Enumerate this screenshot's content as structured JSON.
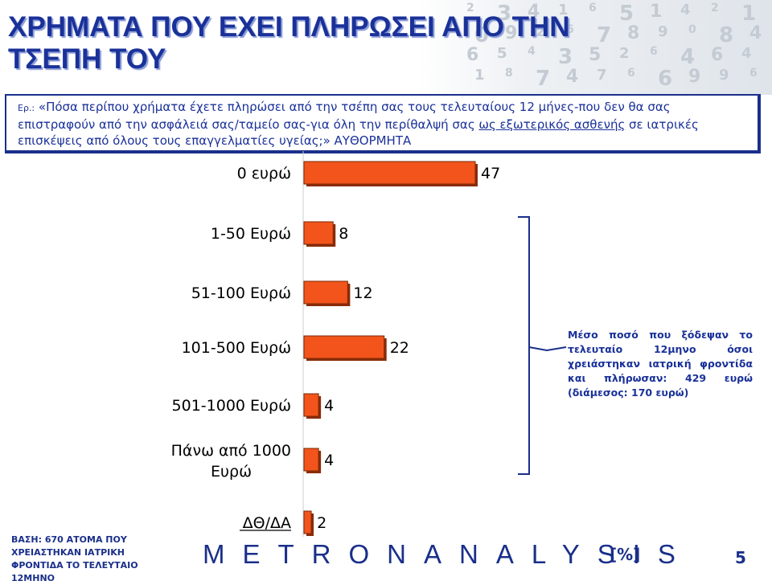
{
  "slide": {
    "title": "ΧΡΗΜΑΤΑ ΠΟΥ ΕΧΕΙ ΠΛΗΡΩΣΕΙ ΑΠΟ ΤΗΝ ΤΣΕΠΗ ΤΟΥ",
    "question_prefix": "Ερ.:",
    "question_part1": " «Πόσα περίπου χρήματα έχετε πληρώσει από την τσέπη σας τους τελευταίους 12 μήνες-που δεν θα σας επιστραφούν από την ασφάλειά σας/ταμείο σας-για όλη την περίθαλψή σας ",
    "question_underlined": "ως εξωτερικός ασθενής",
    "question_part2": " σε ιατρικές επισκέψεις από όλους τους επαγγελματίες υγείας;» ΑΥΘΟΡΜΗΤΑ",
    "note": "Μέσο ποσό που ξόδεψαν το τελευταίο 12μηνο όσοι χρειάστηκαν ιατρική φροντίδα και πλήρωσαν: 429 ευρώ (διάμεσος: 170 ευρώ)",
    "base": "ΒΑΣΗ: 670 ΑΤΟΜΑ ΠΟΥ ΧΡΕΙΑΣΤΗΚΑΝ ΙΑΤΡΙΚΗ ΦΡΟΝΤΙΔΑ ΤΟ ΤΕΛΕΥΤΑΙΟ 12ΜΗΝΟ",
    "logo": "METRONANALYSIS",
    "unit": "[%]",
    "page_number": "5",
    "background_digits": [
      "2",
      "3",
      "4",
      "1",
      "6",
      "5",
      "1",
      "4",
      "2",
      "1",
      "0",
      "9",
      "2",
      "6",
      "7",
      "8",
      "9",
      "0",
      "8",
      "4",
      "6",
      "5",
      "4",
      "3",
      "5",
      "2",
      "6",
      "4",
      "6",
      "4",
      "1",
      "8",
      "7",
      "4",
      "7",
      "6",
      "6",
      "9",
      "9",
      "6",
      "9"
    ]
  },
  "chart_data": {
    "type": "bar",
    "orientation": "horizontal",
    "categories": [
      "0 ευρώ",
      "1-50 Ευρώ",
      "51-100 Ευρώ",
      "101-500 Ευρώ",
      "501-1000 Ευρώ",
      "Πάνω από 1000 Ευρώ",
      "ΔΘ/ΔΑ"
    ],
    "values": [
      47,
      8,
      12,
      22,
      4,
      4,
      2
    ],
    "title": "",
    "xlabel": "",
    "ylabel": "",
    "xlim": [
      0,
      47
    ],
    "grid": false,
    "legend": "none",
    "bar_color": "#f2541b",
    "bar_shadow_color": "#8a2c08",
    "bracket_color": "#1a2f8a"
  }
}
